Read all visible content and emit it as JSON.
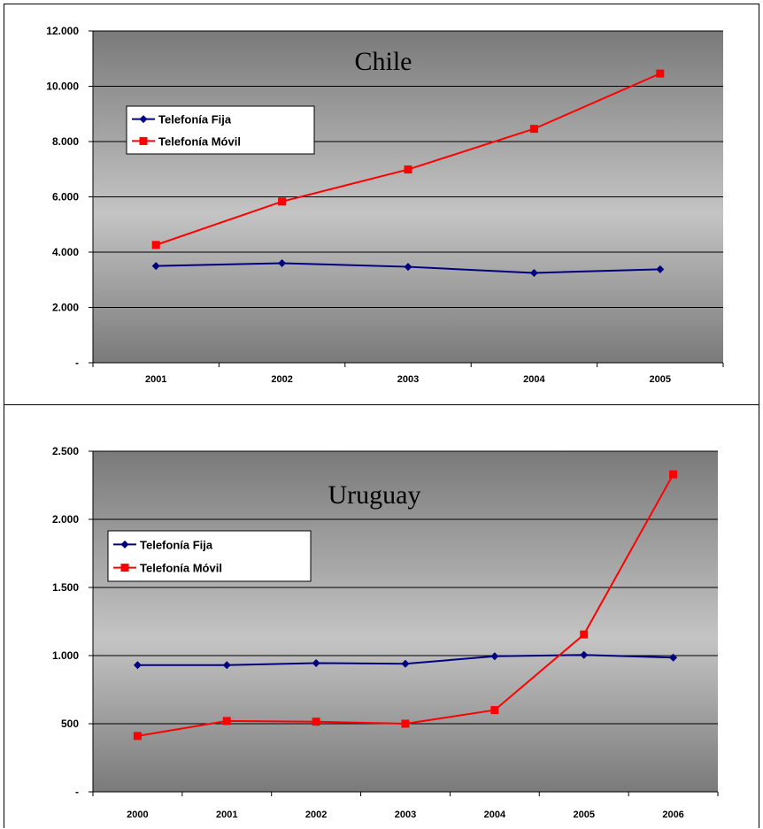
{
  "chart_data": [
    {
      "type": "line",
      "title": "Chile",
      "categories": [
        "2001",
        "2002",
        "2003",
        "2004",
        "2005"
      ],
      "ylim": [
        0,
        12000
      ],
      "yticks": [
        "-",
        "2.000",
        "4.000",
        "6.000",
        "8.000",
        "10.000",
        "12.000"
      ],
      "grid": "horizontal",
      "legend_position": "left",
      "series": [
        {
          "name": "Telefonía Fija",
          "color": "#000080",
          "marker": "diamond",
          "values": [
            3500,
            3600,
            3470,
            3250,
            3380
          ]
        },
        {
          "name": "Telefonía Móvil",
          "color": "#ff0000",
          "marker": "square",
          "values": [
            4260,
            5830,
            6990,
            8460,
            10460
          ]
        }
      ]
    },
    {
      "type": "line",
      "title": "Uruguay",
      "categories": [
        "2000",
        "2001",
        "2002",
        "2003",
        "2004",
        "2005",
        "2006"
      ],
      "ylim": [
        0,
        2500
      ],
      "yticks": [
        "-",
        "500",
        "1.000",
        "1.500",
        "2.000",
        "2.500"
      ],
      "grid": "horizontal",
      "legend_position": "left",
      "series": [
        {
          "name": "Telefonía Fija",
          "color": "#000080",
          "marker": "diamond",
          "values": [
            930,
            930,
            945,
            940,
            995,
            1005,
            985
          ]
        },
        {
          "name": "Telefonía Móvil",
          "color": "#ff0000",
          "marker": "square",
          "values": [
            410,
            520,
            515,
            500,
            600,
            1155,
            2330
          ]
        }
      ]
    }
  ]
}
